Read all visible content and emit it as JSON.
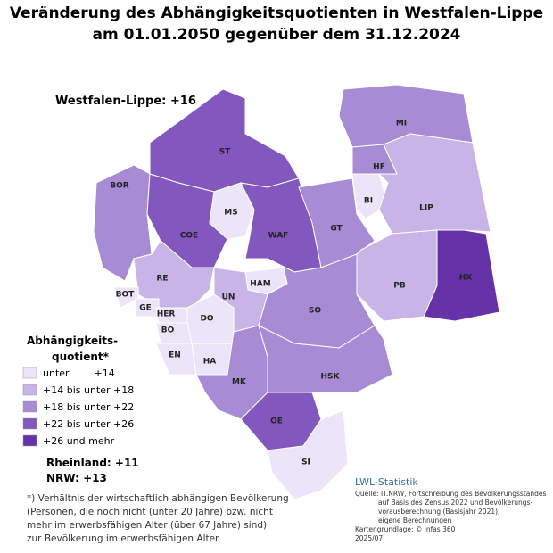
{
  "title": [
    "Veränderung des Abhängigkeitsquotienten in Westfalen-Lippe",
    "am 01.01.2050 gegenüber dem 31.12.2024"
  ],
  "total": "Westfalen-Lippe: +16",
  "legend": {
    "title": [
      "Abhängigkeits-",
      "quotient*"
    ],
    "items": [
      {
        "label": "unter        +14",
        "color": "#ece4f8"
      },
      {
        "label": "+14 bis unter +18",
        "color": "#c8b4e6"
      },
      {
        "label": "+18 bis unter +22",
        "color": "#a78bd4"
      },
      {
        "label": "+22 bis unter +26",
        "color": "#8257be"
      },
      {
        "label": "+26 und mehr",
        "color": "#6632a8"
      }
    ]
  },
  "comparisons": [
    "Rheinland: +11",
    "NRW: +13"
  ],
  "footnote": [
    "*) Verhältnis der wirtschaftlich abhängigen Bevölkerung",
    "(Personen, die noch nicht (unter 20 Jahre) bzw. nicht",
    "mehr im erwerbsfähigen Alter (über 67 Jahre) sind)",
    "zur Bevölkerung im erwerbsfähigen Alter"
  ],
  "brand": "LWL-Statistik",
  "source": [
    "Quelle: IT.NRW, Fortschreibung des Bevölkerungsstandes",
    "auf Basis des Zensus 2022 und Bevölkerungs-",
    "vorausberechnung (Basisjahr 2021);",
    "eigene Berechnungen",
    "Kartengrundlage: © infas 360",
    "2025/07"
  ],
  "regions": [
    {
      "label": "BOR",
      "color": "#a78bd4"
    },
    {
      "label": "ST",
      "color": "#8257be"
    },
    {
      "label": "COE",
      "color": "#8257be"
    },
    {
      "label": "MS",
      "color": "#ece4f8"
    },
    {
      "label": "WAF",
      "color": "#8257be"
    },
    {
      "label": "GT",
      "color": "#a78bd4"
    },
    {
      "label": "BI",
      "color": "#ece4f8"
    },
    {
      "label": "MI",
      "color": "#a78bd4"
    },
    {
      "label": "HF",
      "color": "#a78bd4"
    },
    {
      "label": "LIP",
      "color": "#c8b4e6"
    },
    {
      "label": "HX",
      "color": "#6632a8"
    },
    {
      "label": "PB",
      "color": "#c8b4e6"
    },
    {
      "label": "RE",
      "color": "#c8b4e6"
    },
    {
      "label": "BOT",
      "color": "#ece4f8"
    },
    {
      "label": "GE",
      "color": "#ece4f8"
    },
    {
      "label": "HER",
      "color": "#ece4f8"
    },
    {
      "label": "BO",
      "color": "#ece4f8"
    },
    {
      "label": "DO",
      "color": "#ece4f8"
    },
    {
      "label": "HAM",
      "color": "#ece4f8"
    },
    {
      "label": "UN",
      "color": "#c8b4e6"
    },
    {
      "label": "EN",
      "color": "#ece4f8"
    },
    {
      "label": "HA",
      "color": "#ece4f8"
    },
    {
      "label": "SO",
      "color": "#a78bd4"
    },
    {
      "label": "MK",
      "color": "#a78bd4"
    },
    {
      "label": "HSK",
      "color": "#a78bd4"
    },
    {
      "label": "OE",
      "color": "#8257be"
    },
    {
      "label": "SI",
      "color": "#ece4f8"
    }
  ]
}
